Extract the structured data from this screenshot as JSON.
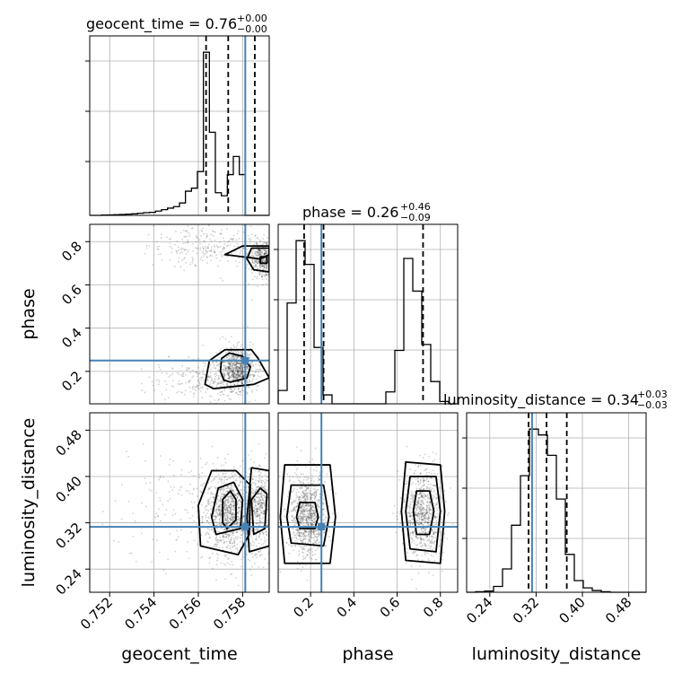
{
  "colors": {
    "truth": "#4682b4",
    "hist": "#000000",
    "grid": "#b0b0b0",
    "axes": "#000000"
  },
  "titles": {
    "geocent_time": {
      "base": "geocent_time = 0.76",
      "sup": "+0.00",
      "sub": "−0.00"
    },
    "phase": {
      "base": "phase = 0.26",
      "sup": "+0.46",
      "sub": "−0.09"
    },
    "luminosity_distance": {
      "base": "luminosity_distance = 0.34",
      "sup": "+0.03",
      "sub": "−0.03"
    }
  },
  "axis_labels": {
    "x": [
      "geocent_time",
      "phase",
      "luminosity_distance"
    ],
    "y": [
      "phase",
      "luminosity_distance"
    ]
  },
  "chart_data": {
    "type": "corner",
    "parameters": [
      "geocent_time",
      "phase",
      "luminosity_distance"
    ],
    "ranges": {
      "geocent_time": [
        0.7511,
        0.7592
      ],
      "phase": [
        0.05,
        0.88
      ],
      "luminosity_distance": [
        0.2,
        0.51
      ]
    },
    "ticks": {
      "geocent_time": [
        "0.752",
        "0.754",
        "0.756",
        "0.758"
      ],
      "phase": [
        "0.2",
        "0.4",
        "0.6",
        "0.8"
      ],
      "luminosity_distance": [
        "0.24",
        "0.32",
        "0.40",
        "0.48"
      ]
    },
    "truths": {
      "geocent_time": 0.75812,
      "phase": 0.25,
      "luminosity_distance": 0.313
    },
    "quantiles": {
      "geocent_time": [
        0.75635,
        0.75735,
        0.75855
      ],
      "phase": [
        0.17,
        0.26,
        0.72
      ],
      "luminosity_distance": [
        0.307,
        0.338,
        0.373
      ]
    },
    "histograms": {
      "geocent_time": {
        "edges": [
          0.7511,
          0.75137,
          0.75164,
          0.75191,
          0.75218,
          0.75245,
          0.75272,
          0.75299,
          0.75326,
          0.75353,
          0.7538,
          0.75407,
          0.75434,
          0.75461,
          0.75488,
          0.75515,
          0.75542,
          0.75569,
          0.75596,
          0.75623,
          0.7565,
          0.75677,
          0.75704,
          0.75731,
          0.75758,
          0.75785,
          0.75812,
          0.75839,
          0.75866,
          0.75893,
          0.7592
        ],
        "counts": [
          0,
          0,
          2,
          3,
          4,
          6,
          8,
          10,
          14,
          18,
          20,
          28,
          38,
          48,
          58,
          82,
          160,
          180,
          290,
          1080,
          550,
          150,
          130,
          270,
          390,
          270,
          0,
          0,
          0,
          0
        ]
      },
      "phase": {
        "edges": [
          0.05,
          0.0915,
          0.133,
          0.1745,
          0.216,
          0.2575,
          0.299,
          0.3405,
          0.382,
          0.4235,
          0.465,
          0.5065,
          0.548,
          0.5895,
          0.631,
          0.6725,
          0.714,
          0.7555,
          0.797,
          0.8385,
          0.88
        ],
        "counts": [
          45,
          340,
          550,
          470,
          190,
          30,
          0,
          0,
          0,
          0,
          0,
          0,
          40,
          180,
          490,
          380,
          200,
          75,
          8,
          0
        ]
      },
      "luminosity_distance": {
        "edges": [
          0.2,
          0.2155,
          0.231,
          0.2465,
          0.262,
          0.2775,
          0.293,
          0.3085,
          0.324,
          0.3395,
          0.355,
          0.3705,
          0.386,
          0.4015,
          0.417,
          0.4325,
          0.448,
          0.4635,
          0.479,
          0.4945,
          0.51
        ],
        "counts": [
          0,
          2,
          4,
          20,
          80,
          230,
          400,
          560,
          540,
          470,
          320,
          130,
          40,
          15,
          6,
          2,
          0,
          0,
          0,
          0
        ]
      }
    },
    "blobs": {
      "phase_vs_geocent_time": [
        {
          "cx": 0.75775,
          "cy": 0.21,
          "sx": 0.0004,
          "sy": 0.05,
          "w": 1.0
        },
        {
          "cx": 0.7589,
          "cy": 0.72,
          "sx": 0.0003,
          "sy": 0.045,
          "w": 0.6
        },
        {
          "cx": 0.7564,
          "cy": 0.78,
          "sx": 0.0012,
          "sy": 0.05,
          "w": 0.35
        },
        {
          "cx": 0.7564,
          "cy": 0.16,
          "sx": 0.0012,
          "sy": 0.05,
          "w": 0.35
        }
      ],
      "luminosity_distance_vs_geocent_time": [
        {
          "cx": 0.75735,
          "cy": 0.338,
          "sx": 0.0005,
          "sy": 0.035,
          "w": 1.0
        },
        {
          "cx": 0.7588,
          "cy": 0.345,
          "sx": 0.00035,
          "sy": 0.038,
          "w": 0.6
        },
        {
          "cx": 0.7555,
          "cy": 0.34,
          "sx": 0.0015,
          "sy": 0.05,
          "w": 0.25
        }
      ],
      "luminosity_distance_vs_phase": [
        {
          "cx": 0.19,
          "cy": 0.333,
          "sx": 0.045,
          "sy": 0.035,
          "w": 1.0
        },
        {
          "cx": 0.72,
          "cy": 0.337,
          "sx": 0.045,
          "sy": 0.037,
          "w": 0.85
        }
      ]
    },
    "contours": {
      "phase_vs_geocent_time": [
        [
          [
            0.75745,
            0.15
          ],
          [
            0.7582,
            0.17
          ],
          [
            0.75835,
            0.22
          ],
          [
            0.758,
            0.27
          ],
          [
            0.7574,
            0.285
          ],
          [
            0.75705,
            0.26
          ],
          [
            0.757,
            0.2
          ],
          [
            0.75715,
            0.16
          ]
        ],
        [
          [
            0.7567,
            0.12
          ],
          [
            0.7585,
            0.14
          ],
          [
            0.7592,
            0.17
          ],
          [
            0.7587,
            0.26
          ],
          [
            0.7584,
            0.3
          ],
          [
            0.7572,
            0.3
          ],
          [
            0.7565,
            0.25
          ],
          [
            0.7563,
            0.14
          ]
        ],
        [
          [
            0.7585,
            0.67
          ],
          [
            0.7592,
            0.66
          ],
          [
            0.7592,
            0.77
          ],
          [
            0.7584,
            0.77
          ],
          [
            0.7582,
            0.72
          ]
        ],
        [
          [
            0.7572,
            0.74
          ],
          [
            0.7588,
            0.72
          ],
          [
            0.7592,
            0.74
          ],
          [
            0.7592,
            0.78
          ],
          [
            0.758,
            0.78
          ]
        ],
        [
          [
            0.7588,
            0.7
          ],
          [
            0.7591,
            0.7
          ],
          [
            0.7591,
            0.73
          ],
          [
            0.7588,
            0.73
          ]
        ]
      ],
      "luminosity_distance_vs_geocent_time": [
        [
          [
            0.7573,
            0.31
          ],
          [
            0.7577,
            0.325
          ],
          [
            0.7577,
            0.36
          ],
          [
            0.75745,
            0.375
          ],
          [
            0.7571,
            0.36
          ],
          [
            0.7571,
            0.32
          ]
        ],
        [
          [
            0.7568,
            0.3
          ],
          [
            0.7579,
            0.31
          ],
          [
            0.758,
            0.36
          ],
          [
            0.7576,
            0.39
          ],
          [
            0.7569,
            0.38
          ],
          [
            0.7566,
            0.33
          ]
        ],
        [
          [
            0.7561,
            0.28
          ],
          [
            0.7578,
            0.265
          ],
          [
            0.7583,
            0.3
          ],
          [
            0.75835,
            0.385
          ],
          [
            0.7577,
            0.41
          ],
          [
            0.7566,
            0.41
          ],
          [
            0.756,
            0.35
          ]
        ],
        [
          [
            0.7585,
            0.3
          ],
          [
            0.759,
            0.31
          ],
          [
            0.7591,
            0.37
          ],
          [
            0.7588,
            0.38
          ],
          [
            0.7584,
            0.36
          ]
        ],
        [
          [
            0.7583,
            0.27
          ],
          [
            0.7592,
            0.28
          ],
          [
            0.7592,
            0.41
          ],
          [
            0.7584,
            0.415
          ],
          [
            0.7582,
            0.33
          ]
        ]
      ],
      "luminosity_distance_vs_phase": [
        [
          [
            0.15,
            0.31
          ],
          [
            0.22,
            0.31
          ],
          [
            0.235,
            0.33
          ],
          [
            0.22,
            0.355
          ],
          [
            0.15,
            0.355
          ],
          [
            0.135,
            0.33
          ]
        ],
        [
          [
            0.11,
            0.285
          ],
          [
            0.26,
            0.28
          ],
          [
            0.285,
            0.33
          ],
          [
            0.26,
            0.385
          ],
          [
            0.11,
            0.385
          ],
          [
            0.09,
            0.33
          ]
        ],
        [
          [
            0.08,
            0.25
          ],
          [
            0.29,
            0.25
          ],
          [
            0.315,
            0.33
          ],
          [
            0.29,
            0.42
          ],
          [
            0.08,
            0.42
          ],
          [
            0.06,
            0.33
          ]
        ],
        [
          [
            0.69,
            0.3
          ],
          [
            0.75,
            0.3
          ],
          [
            0.77,
            0.34
          ],
          [
            0.75,
            0.375
          ],
          [
            0.69,
            0.375
          ],
          [
            0.675,
            0.34
          ]
        ],
        [
          [
            0.66,
            0.275
          ],
          [
            0.78,
            0.27
          ],
          [
            0.8,
            0.34
          ],
          [
            0.78,
            0.4
          ],
          [
            0.66,
            0.4
          ],
          [
            0.64,
            0.34
          ]
        ],
        [
          [
            0.64,
            0.255
          ],
          [
            0.8,
            0.25
          ],
          [
            0.82,
            0.34
          ],
          [
            0.8,
            0.42
          ],
          [
            0.64,
            0.425
          ],
          [
            0.62,
            0.34
          ]
        ]
      ]
    }
  }
}
